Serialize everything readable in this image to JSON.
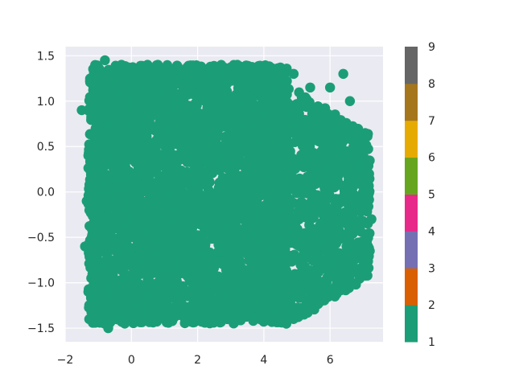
{
  "chart_data": {
    "type": "scatter",
    "title": "",
    "xlabel": "",
    "ylabel": "",
    "xlim": [
      -2,
      7.6
    ],
    "ylim": [
      -1.65,
      1.6
    ],
    "x_ticks": [
      -2,
      0,
      2,
      4,
      6
    ],
    "x_tick_labels": [
      "−2",
      "0",
      "2",
      "4",
      "6"
    ],
    "y_ticks": [
      -1.5,
      -1.0,
      -0.5,
      0.0,
      0.5,
      1.0,
      1.5
    ],
    "y_tick_labels": [
      "−1.5",
      "−1.0",
      "−0.5",
      "0.0",
      "0.5",
      "1.0",
      "1.5"
    ],
    "grid": true,
    "background": "#eaeaf2",
    "point_color": "#1b9e77",
    "series": [
      {
        "color_value": 1,
        "description_region": {
          "x_range": [
            -1.4,
            7.2
          ],
          "y_range": [
            -1.5,
            1.45
          ]
        },
        "points": [
          [
            -1.2,
            1.2
          ],
          [
            -0.8,
            1.45
          ],
          [
            -0.3,
            1.4
          ],
          [
            0.2,
            1.3
          ],
          [
            0.8,
            1.4
          ],
          [
            1.4,
            1.38
          ],
          [
            2.0,
            1.35
          ],
          [
            2.6,
            1.37
          ],
          [
            3.2,
            1.4
          ],
          [
            3.8,
            1.2
          ],
          [
            4.4,
            1.1
          ],
          [
            4.9,
            1.3
          ],
          [
            5.4,
            1.15
          ],
          [
            6.0,
            1.15
          ],
          [
            6.4,
            1.3
          ],
          [
            6.6,
            1.0
          ],
          [
            -1.5,
            0.9
          ],
          [
            -1.3,
            0.4
          ],
          [
            -1.35,
            -0.1
          ],
          [
            -1.4,
            -0.6
          ],
          [
            -1.3,
            -1.1
          ],
          [
            -0.9,
            -1.4
          ],
          [
            -0.7,
            -1.5
          ],
          [
            -0.2,
            -1.45
          ],
          [
            0.3,
            -1.43
          ],
          [
            0.9,
            -1.35
          ],
          [
            1.5,
            -1.3
          ],
          [
            2.1,
            -1.38
          ],
          [
            2.7,
            -1.35
          ],
          [
            3.2,
            -1.3
          ],
          [
            3.7,
            -1.2
          ],
          [
            4.3,
            -1.2
          ],
          [
            4.8,
            -1.1
          ],
          [
            5.3,
            -1.25
          ],
          [
            5.9,
            -1.1
          ],
          [
            6.4,
            -0.95
          ],
          [
            6.9,
            -0.9
          ],
          [
            7.2,
            -0.65
          ],
          [
            7.25,
            -0.3
          ],
          [
            7.1,
            0.1
          ],
          [
            6.8,
            0.5
          ],
          [
            6.5,
            0.35
          ],
          [
            5.5,
            0.8
          ],
          [
            4.8,
            0.2
          ],
          [
            4.0,
            -0.4
          ],
          [
            3.0,
            0.5
          ],
          [
            2.0,
            -0.5
          ],
          [
            1.0,
            0.3
          ],
          [
            0.0,
            -0.2
          ]
        ]
      }
    ],
    "colorbar": {
      "ticks": [
        1,
        2,
        3,
        4,
        5,
        6,
        7,
        8,
        9
      ],
      "tick_labels": [
        "1",
        "2",
        "3",
        "4",
        "5",
        "6",
        "7",
        "8",
        "9"
      ],
      "colors": [
        "#1b9e77",
        "#d95f02",
        "#7570b3",
        "#e7298a",
        "#66a61e",
        "#e6ab02",
        "#a6761d",
        "#666666"
      ]
    }
  }
}
